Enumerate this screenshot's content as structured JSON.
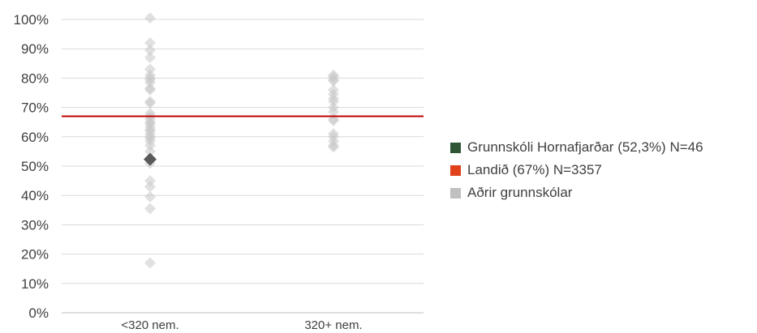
{
  "chart_data": {
    "type": "scatter",
    "categories": [
      "<320 nem.",
      "320+ nem."
    ],
    "y_ticks": [
      "0%",
      "10%",
      "20%",
      "30%",
      "40%",
      "50%",
      "60%",
      "70%",
      "80%",
      "90%",
      "100%"
    ],
    "ylim": [
      0,
      100
    ],
    "grid": true,
    "legend_position": "right",
    "reference_line": {
      "value": 67,
      "color": "#C00000"
    },
    "highlight": {
      "category": "<320 nem.",
      "value": 52.3,
      "color": "#595959"
    },
    "series": [
      {
        "category": "<320 nem.",
        "values": [
          100.5,
          92,
          89.5,
          87,
          83,
          81,
          80,
          79.5,
          78.5,
          76.5,
          76,
          72,
          71.5,
          68,
          67,
          66,
          65,
          64.5,
          63.5,
          62.5,
          62,
          61,
          60,
          59.5,
          58.5,
          57,
          55,
          52,
          51,
          45,
          43,
          39.5,
          35.5,
          17
        ]
      },
      {
        "category": "320+ nem.",
        "values": [
          81,
          80.5,
          79.5,
          79,
          76,
          74.5,
          73,
          72,
          70,
          68.5,
          66,
          65.5,
          61,
          60,
          58.5,
          57,
          56.5
        ]
      }
    ],
    "colors": {
      "points": "#C8C8C8",
      "axis": "#BFBFBF",
      "grid": "#D9D9D9"
    }
  },
  "legend": [
    {
      "label": "Grunnskóli Hornafjarðar (52,3%) N=46",
      "color": "#2E5634"
    },
    {
      "label": "Landið (67%) N=3357",
      "color": "#E0401A"
    },
    {
      "label": "Aðrir grunnskólar",
      "color": "#C0C0C0"
    }
  ]
}
